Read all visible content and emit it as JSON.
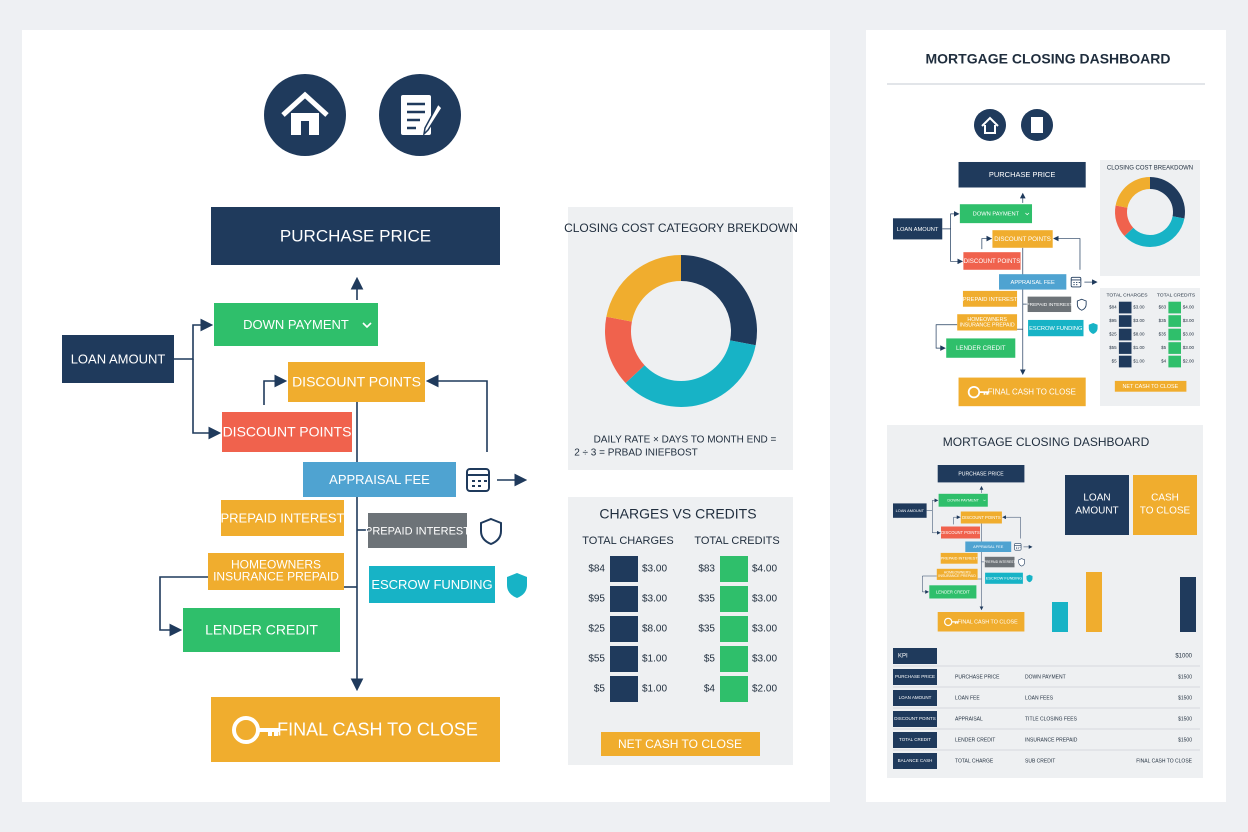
{
  "flow": {
    "nodes": [
      {
        "label": "PURCHASE PRICE"
      },
      {
        "label": "LOAN AMOUNT"
      },
      {
        "label": "DOWN PAYMENT"
      },
      {
        "label": "DISCOUNT POINTS"
      },
      {
        "label": "DISCOUNT POINTS"
      },
      {
        "label": "APPRAISAL FEE"
      },
      {
        "label": "PREPAID INTEREST"
      },
      {
        "label": "PREPAID INTEREST"
      },
      {
        "label": [
          "HOMEOWNERS",
          "INSURANCE PREPAID"
        ]
      },
      {
        "label": "ESCROW FUNDING"
      },
      {
        "label": "LENDER CREDIT"
      },
      {
        "label": "FINAL CASH TO CLOSE"
      }
    ]
  },
  "donut": {
    "type": "pie",
    "title": "CLOSING COST CATEGORY BREKDOWN",
    "values": [
      28,
      35,
      15,
      22
    ],
    "colors": [
      "#1f3a5c",
      "#17b3c6",
      "#f0624d",
      "#f0ad2e"
    ],
    "note": [
      "DAILY RATE × DAYS TO MONTH END =",
      "2 ÷ 3 = PRBAD INIEFBOST"
    ]
  },
  "charges": {
    "title": "CHARGES VS CREDITS",
    "columns": [
      "TOTAL CHARGES",
      "TOTAL CREDITS"
    ],
    "rows": [
      [
        "$84",
        "$3.00",
        "$83",
        "$4.00"
      ],
      [
        "$95",
        "$3.00",
        "$35",
        "$3.00"
      ],
      [
        "$25",
        "$8.00",
        "$35",
        "$3.00"
      ],
      [
        "$55",
        "$1.00",
        "$5",
        "$3.00"
      ],
      [
        "$5",
        "$1.00",
        "$4",
        "$2.00"
      ]
    ],
    "button": "NET CASH TO CLOSE"
  },
  "dashboard": {
    "title": "MORTGAGE CLOSING DASHBOARD",
    "donut_title": "CLOSING COST BREAKDOWN"
  },
  "dashboard2": {
    "title": "MORTGAGE CLOSING DASHBOARD",
    "kpis": [
      [
        "LOAN",
        "AMOUNT"
      ],
      [
        "CASH",
        "TO CLOSE"
      ]
    ],
    "bars": {
      "values": [
        30,
        60,
        55
      ],
      "colors": [
        "#17b3c6",
        "#f0ad2e",
        "#1f3a5c"
      ]
    },
    "table": {
      "header": [
        "KPI",
        "$1000"
      ],
      "rows": [
        [
          "PURCHASE PRICE",
          "PURCHASE PRICE",
          "DOWN PAYMENT",
          "$1500"
        ],
        [
          "LOAN AMOUNT",
          "LOAN FEE",
          "LOAN FEES",
          "$1500"
        ],
        [
          "DISCOUNT POINTS",
          "APPRAISAL",
          "TITLE CLOSING FEES",
          "$1500"
        ],
        [
          "TOTAL CREDIT",
          "LENDER CREDIT",
          "INSURANCE PREPAID",
          "$1500"
        ],
        [
          "BALANCE CASH",
          "TOTAL CHARGE",
          "SUB CREDIT",
          "FINAL CASH TO CLOSE"
        ]
      ]
    }
  }
}
